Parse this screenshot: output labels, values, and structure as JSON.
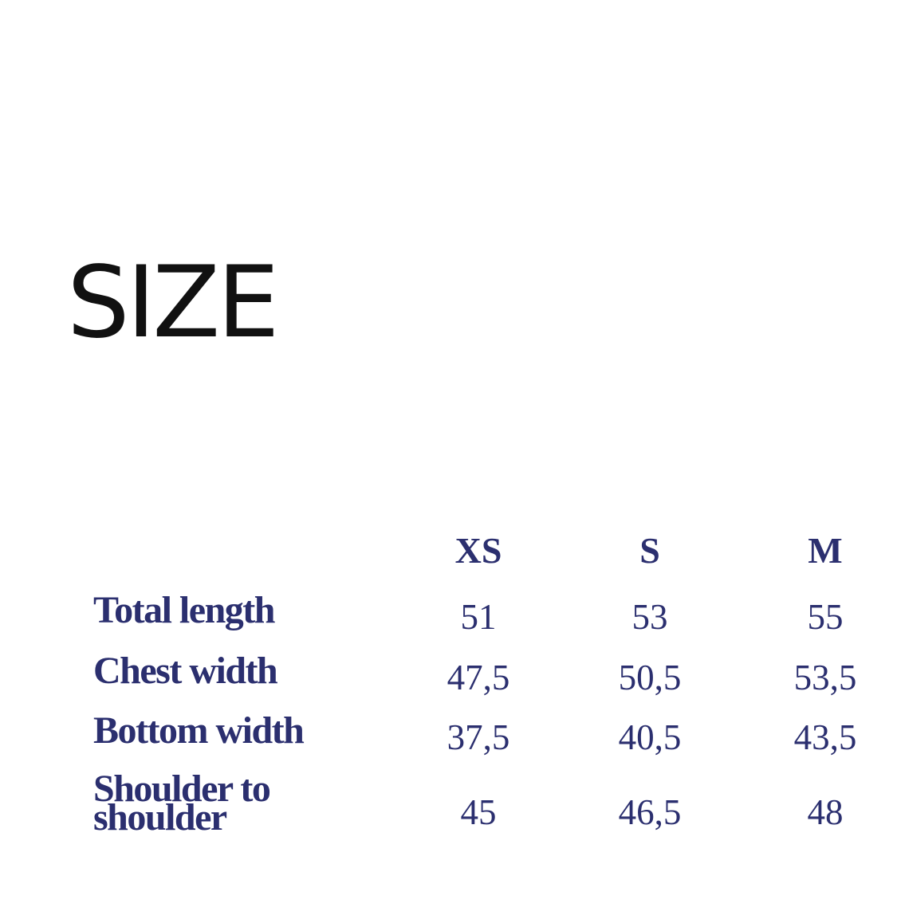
{
  "title": "SIZE",
  "text_color": "#2b2f6f",
  "table": {
    "columns": [
      "XS",
      "S",
      "M"
    ],
    "rows": [
      {
        "label": "Total length",
        "values": [
          "51",
          "53",
          "55"
        ]
      },
      {
        "label": "Chest width",
        "values": [
          "47,5",
          "50,5",
          "53,5"
        ]
      },
      {
        "label": "Bottom width",
        "values": [
          "37,5",
          "40,5",
          "43,5"
        ]
      },
      {
        "label": "Shoulder to shoulder",
        "values": [
          "45",
          "46,5",
          "48"
        ]
      }
    ]
  }
}
